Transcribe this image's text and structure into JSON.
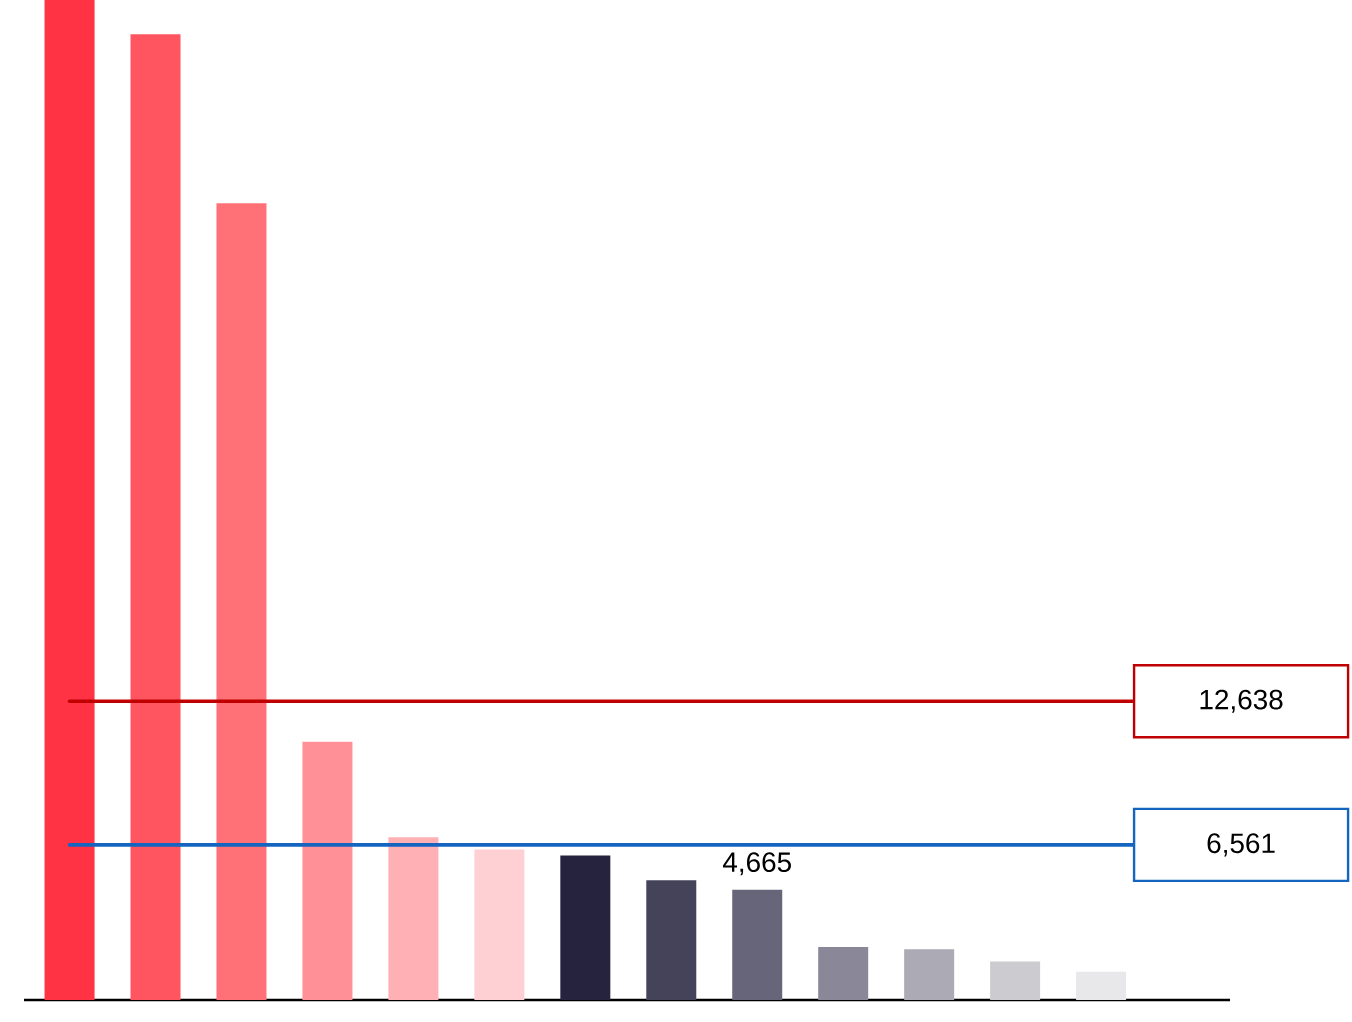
{
  "chart_data": {
    "type": "bar",
    "categories": [
      null,
      null,
      null,
      null,
      null,
      null,
      null,
      null,
      null,
      null,
      null,
      null,
      null
    ],
    "values": [
      42300,
      40850,
      33700,
      10920,
      6880,
      6370,
      6110,
      5070,
      4665,
      2240,
      2150,
      1630,
      1200
    ],
    "colors": [
      "#ff3344",
      "#ff5560",
      "#ff7077",
      "#ff9097",
      "#ffb0b5",
      "#ffd0d3",
      "#25233d",
      "#45435a",
      "#67657a",
      "#8a8898",
      "#abaab5",
      "#cbcbd0",
      "#e8e8ea"
    ],
    "value_labels": [
      null,
      null,
      null,
      null,
      null,
      null,
      null,
      null,
      "4,665",
      null,
      null,
      null,
      null
    ],
    "ref_lines": [
      {
        "axis": "y",
        "value": 12638,
        "label": "12,638",
        "color": "#c00000"
      },
      {
        "axis": "y",
        "value": 6561,
        "label": "6,561",
        "color": "#1565c0"
      }
    ],
    "marker": "none"
  }
}
